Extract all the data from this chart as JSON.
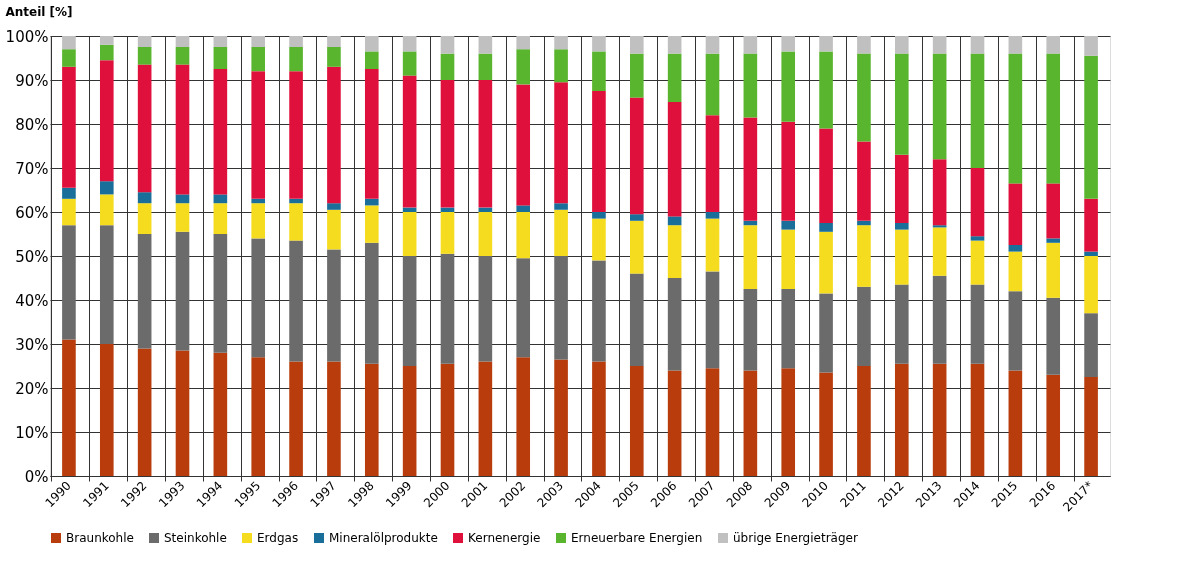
{
  "chart_data": {
    "type": "bar",
    "stacked": true,
    "ylabel": "Anteil [%]",
    "categories": [
      "1990",
      "1991",
      "1992",
      "1993",
      "1994",
      "1995",
      "1996",
      "1997",
      "1998",
      "1999",
      "2000",
      "2001",
      "2002",
      "2003",
      "2004",
      "2005",
      "2006",
      "2007",
      "2008",
      "2009",
      "2010",
      "2011",
      "2012",
      "2013",
      "2014",
      "2015",
      "2016",
      "2017*"
    ],
    "series": [
      {
        "name": "Braunkohle",
        "color": "#b83c0c",
        "values": [
          31,
          30,
          29,
          28.5,
          28,
          27,
          26,
          26,
          25.5,
          25,
          25.5,
          26,
          27,
          26.5,
          26,
          25,
          24,
          24.5,
          24,
          24.5,
          23.5,
          25,
          25.5,
          25.5,
          25.5,
          24,
          23,
          22.5
        ]
      },
      {
        "name": "Steinkohle",
        "color": "#6b6b6b",
        "values": [
          26,
          27,
          26,
          27,
          27,
          27,
          27.5,
          25.5,
          27.5,
          25,
          25,
          24,
          22.5,
          23.5,
          23,
          21,
          21,
          22,
          18.5,
          18,
          18,
          18,
          18,
          20,
          18,
          18,
          17.5,
          14.5
        ]
      },
      {
        "name": "Erdgas",
        "color": "#f5dc1e",
        "values": [
          6,
          7,
          7,
          6.5,
          7,
          8,
          8.5,
          9,
          8.5,
          10,
          9.5,
          10,
          10.5,
          10.5,
          9.5,
          12,
          12,
          12,
          14.5,
          13.5,
          14,
          14,
          12.5,
          11,
          10,
          9,
          12.5,
          13
        ]
      },
      {
        "name": "Mineralölprodukte",
        "color": "#1a6e9a",
        "values": [
          2.5,
          3,
          2.5,
          2,
          2,
          1,
          1,
          1.5,
          1.5,
          1,
          1,
          1,
          1.5,
          1.5,
          1.5,
          1.5,
          2,
          1.5,
          1,
          2,
          2,
          1,
          1.5,
          0.5,
          1,
          1.5,
          1,
          1
        ]
      },
      {
        "name": "Kernenergie",
        "color": "#e0103c",
        "values": [
          27.5,
          27.5,
          29,
          29.5,
          28.5,
          29,
          29,
          31,
          29.5,
          30,
          29,
          29,
          27.5,
          27.5,
          27.5,
          26.5,
          26,
          22,
          23.5,
          22.5,
          21.5,
          18,
          15.5,
          15,
          15.5,
          14,
          12.5,
          12
        ]
      },
      {
        "name": "Erneuerbare Energien",
        "color": "#5ab52e",
        "values": [
          4,
          3.5,
          4,
          4,
          5,
          5.5,
          5.5,
          4.5,
          4,
          5.5,
          6,
          6,
          8,
          7.5,
          9,
          10,
          11,
          14,
          14.5,
          16,
          17.5,
          20,
          23,
          24,
          26,
          29.5,
          29.5,
          32.5
        ]
      },
      {
        "name": "übrige Energieträger",
        "color": "#c0c0c0",
        "values": [
          3,
          2,
          2.5,
          2.5,
          2.5,
          2.5,
          2.5,
          2.5,
          3.5,
          3.5,
          4,
          4,
          3,
          3,
          3.5,
          4,
          4,
          4,
          4,
          3.5,
          3.5,
          4,
          4,
          4,
          4,
          4,
          4,
          4.5
        ]
      }
    ],
    "ylim": [
      0,
      100
    ],
    "yticks": [
      {
        "value": 0,
        "label": "0%"
      },
      {
        "value": 10,
        "label": "10%"
      },
      {
        "value": 20,
        "label": "20%"
      },
      {
        "value": 30,
        "label": "30%"
      },
      {
        "value": 40,
        "label": "40%"
      },
      {
        "value": 50,
        "label": "50%"
      },
      {
        "value": 60,
        "label": "60%"
      },
      {
        "value": 70,
        "label": "70%"
      },
      {
        "value": 80,
        "label": "80%"
      },
      {
        "value": 90,
        "label": "90%"
      },
      {
        "value": 100,
        "label": "100%"
      }
    ],
    "grid": true,
    "legend": "bottom"
  }
}
